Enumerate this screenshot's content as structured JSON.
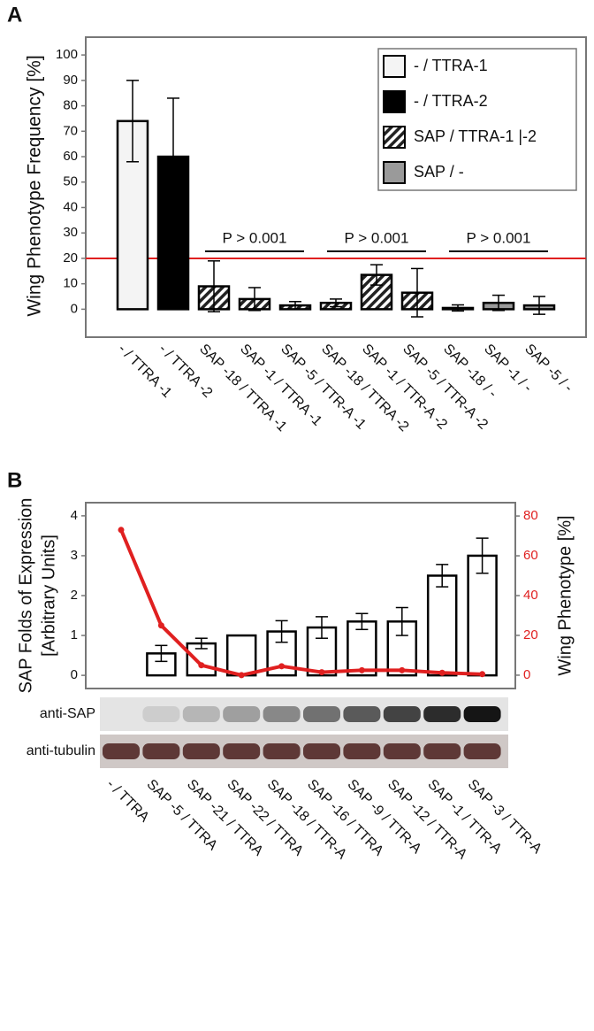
{
  "chart_data": [
    {
      "type": "bar",
      "panel": "A",
      "ylabel": "Wing Phenotype Frequency [%]",
      "categories": [
        "- / TTRA -1",
        "- / TTRA -2",
        "SAP -18 / TTRA -1",
        "SAP -1 / TTRA -1",
        "SAP -5 / TTR-A -1",
        "SAP -18 / TTRA -2",
        "SAP -1 / TTR-A -2",
        "SAP -5 / TTR-A -2",
        "SAP -18 / -",
        "SAP -1 / -",
        "SAP -5 / -"
      ],
      "series": [
        {
          "name": "- / TTRA-1",
          "color": "#f4f4f4",
          "values": [
            74,
            null,
            null,
            null,
            null,
            null,
            null,
            null,
            null,
            null,
            null
          ],
          "errors": [
            16,
            null,
            null,
            null,
            null,
            null,
            null,
            null,
            null,
            null,
            null
          ]
        },
        {
          "name": "- / TTRA-2",
          "color": "#000000",
          "values": [
            null,
            60,
            null,
            null,
            null,
            null,
            null,
            null,
            null,
            null,
            null
          ],
          "errors": [
            null,
            23,
            null,
            null,
            null,
            null,
            null,
            null,
            null,
            null,
            null
          ]
        },
        {
          "name": "SAP / TTRA-1 |-2",
          "color": "#222222",
          "pattern": "diagonal",
          "values": [
            null,
            null,
            9,
            4,
            1.5,
            2.5,
            13.5,
            6.5,
            null,
            null,
            null
          ],
          "errors": [
            null,
            null,
            10,
            4.5,
            1.5,
            1.5,
            4,
            9.5,
            null,
            null,
            null
          ]
        },
        {
          "name": "SAP / -",
          "color": "#9a9a9a",
          "values": [
            null,
            null,
            null,
            null,
            null,
            null,
            null,
            null,
            0.5,
            2.5,
            1.5
          ],
          "errors": [
            null,
            null,
            null,
            null,
            null,
            null,
            null,
            null,
            1.2,
            3,
            3.5
          ]
        }
      ],
      "threshold": {
        "value": 20,
        "color": "#e02020"
      },
      "annotations": [
        {
          "text": "P > 0.001",
          "span": [
            2,
            4
          ]
        },
        {
          "text": "P > 0.001",
          "span": [
            5,
            7
          ]
        },
        {
          "text": "P > 0.001",
          "span": [
            8,
            10
          ]
        }
      ],
      "ylim": [
        -11,
        107
      ],
      "yticks": [
        0,
        10,
        20,
        30,
        40,
        50,
        60,
        70,
        80,
        90,
        100
      ],
      "legend": "upper right"
    },
    {
      "type": "bar",
      "panel": "B",
      "ylabel": [
        "SAP Folds of Expression",
        "[Arbitrary Units]"
      ],
      "y2label": "Wing Phenotype [%]",
      "categories": [
        "- / TTRA",
        "SAP -5 / TTRA",
        "SAP -21 / TTRA",
        "SAP -22 / TTRA",
        "SAP -18 / TTR-A",
        "SAP -16 / TTRA",
        "SAP -9 / TTR-A",
        "SAP -12 / TTR-A",
        "SAP -1 / TTR-A",
        "SAP -3 / TTR-A"
      ],
      "series": [
        {
          "color": "#ffffff",
          "values": [
            0,
            0.55,
            0.8,
            1.0,
            1.1,
            1.2,
            1.35,
            1.35,
            2.5,
            3.0
          ],
          "errors": [
            null,
            0.2,
            0.13,
            null,
            0.27,
            0.27,
            0.2,
            0.35,
            0.28,
            0.44
          ]
        },
        {
          "type": "line",
          "color": "#e02020",
          "axis": "y2",
          "values": [
            73,
            25,
            5,
            0,
            4.5,
            1.5,
            2.5,
            2.5,
            1.2,
            0.5
          ]
        }
      ],
      "ylim": [
        -0.33,
        4.33
      ],
      "yticks": [
        0,
        1,
        2,
        3,
        4
      ],
      "y2lim": [
        -6.7,
        86.7
      ],
      "y2ticks": [
        0,
        20,
        40,
        60,
        80
      ],
      "y2color": "#e02020",
      "blots": [
        "anti-SAP",
        "anti-tubulin"
      ]
    }
  ]
}
